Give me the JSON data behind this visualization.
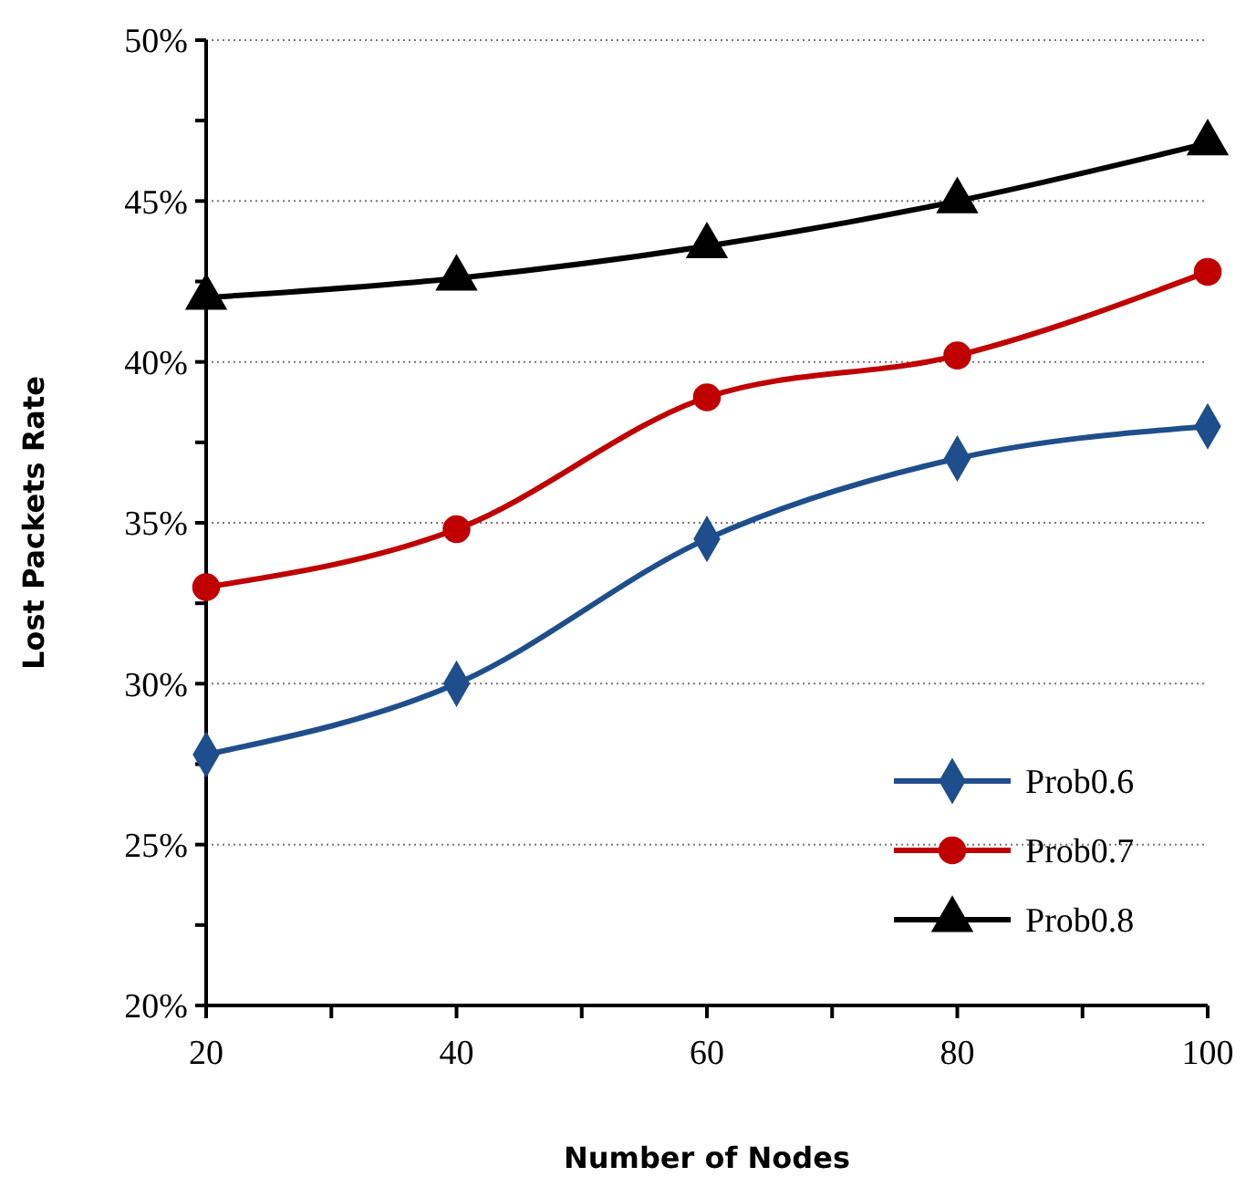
{
  "chart_data": {
    "type": "line",
    "xlabel": "Number of Nodes",
    "ylabel": "Lost Packets Rate",
    "x": [
      20,
      40,
      60,
      80,
      100
    ],
    "xlim": [
      20,
      100
    ],
    "xticks": [
      20,
      {
        "value": 30,
        "label": null
      },
      40,
      {
        "value": 50,
        "label": null
      },
      60,
      {
        "value": 70,
        "label": null
      },
      80,
      {
        "value": 90,
        "label": null
      },
      100
    ],
    "ylim": [
      20,
      50
    ],
    "yticks": [
      {
        "value": 20,
        "label": "20%"
      },
      {
        "value": 22.5,
        "label": null
      },
      {
        "value": 25,
        "label": "25%"
      },
      {
        "value": 27.5,
        "label": null
      },
      {
        "value": 30,
        "label": "30%"
      },
      {
        "value": 32.5,
        "label": null
      },
      {
        "value": 35,
        "label": "35%"
      },
      {
        "value": 37.5,
        "label": null
      },
      {
        "value": 40,
        "label": "40%"
      },
      {
        "value": 42.5,
        "label": null
      },
      {
        "value": 45,
        "label": "45%"
      },
      {
        "value": 47.5,
        "label": null
      },
      {
        "value": 50,
        "label": "50%"
      }
    ],
    "grid": "y",
    "legend": "bottom right",
    "line_style": "solid",
    "series": [
      {
        "name": "Prob0.6",
        "color": "#1f4e8c",
        "marker": "diamond",
        "values": [
          27.8,
          30,
          34.5,
          37,
          38
        ]
      },
      {
        "name": "Prob0.7",
        "color": "#c00000",
        "marker": "circle",
        "values": [
          33,
          34.8,
          38.9,
          40.2,
          42.8
        ]
      },
      {
        "name": "Prob0.8",
        "color": "#000000",
        "marker": "triangle",
        "values": [
          42,
          42.6,
          43.6,
          45,
          46.8
        ]
      }
    ]
  }
}
